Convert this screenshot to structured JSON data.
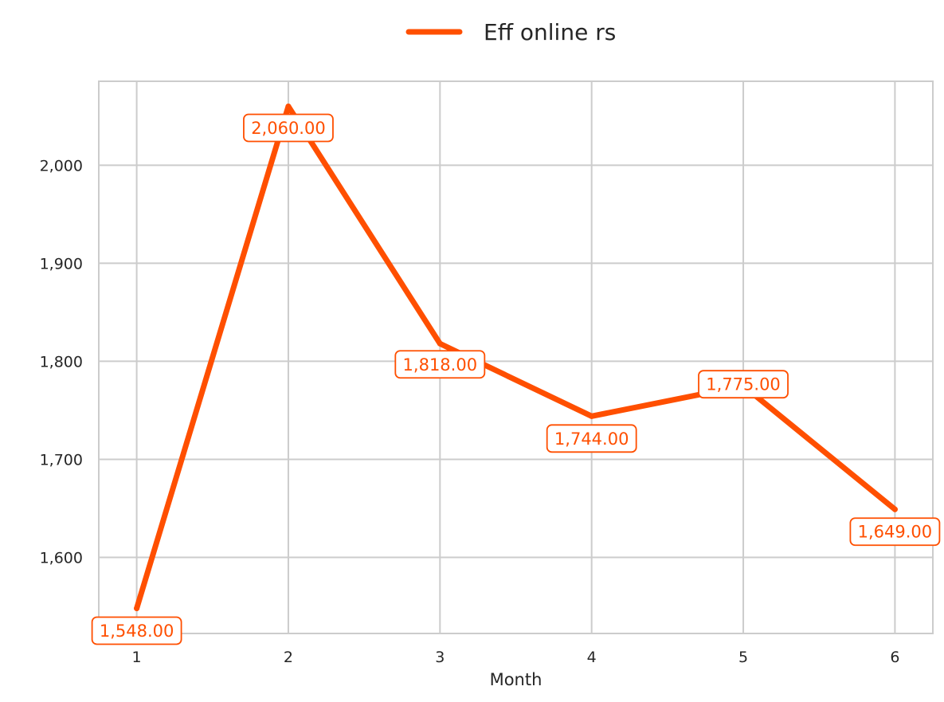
{
  "chart_data": {
    "type": "line",
    "x": [
      1,
      2,
      3,
      4,
      5,
      6
    ],
    "x_tick_labels": [
      "1",
      "2",
      "3",
      "4",
      "5",
      "6"
    ],
    "series": [
      {
        "name": "Eff online rs",
        "color": "#FF4F00",
        "values": [
          1548,
          2060,
          1818,
          1744,
          1775,
          1649
        ],
        "data_labels": [
          "1,548.00",
          "2,060.00",
          "1,818.00",
          "1,744.00",
          "1,775.00",
          "1,649.00"
        ]
      }
    ],
    "xlabel": "Month",
    "ylabel": "",
    "y_ticks": [
      1600,
      1700,
      1800,
      1900,
      2000
    ],
    "y_tick_labels": [
      "1,600",
      "1,700",
      "1,800",
      "1,900",
      "2,000"
    ],
    "xlim": [
      0.75,
      6.25
    ],
    "ylim": [
      1522.4,
      2085.6
    ],
    "grid": true,
    "legend_position": "top-center"
  }
}
